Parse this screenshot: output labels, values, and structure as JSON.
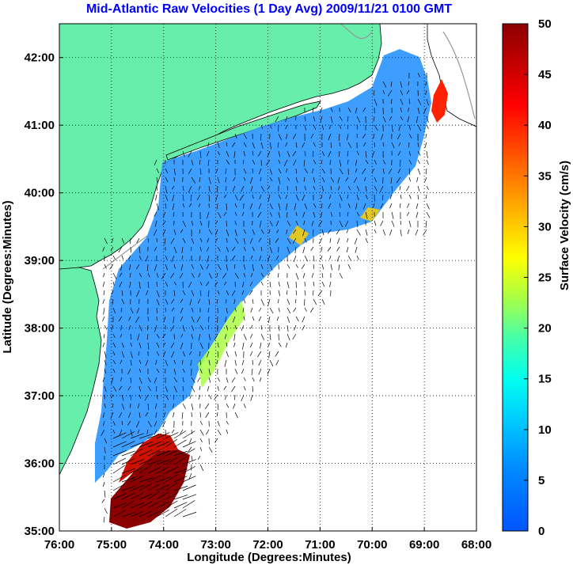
{
  "title": "Mid-Atlantic Raw Velocities (1 Day Avg) 2009/11/21 0100 GMT",
  "map": {
    "xlabel": "Longitude (Degrees:Minutes)",
    "ylabel": "Latitude (Degrees:Minutes)",
    "x_ticks": [
      "76:00",
      "75:00",
      "74:00",
      "73:00",
      "72:00",
      "71:00",
      "70:00",
      "69:00",
      "68:00"
    ],
    "y_ticks": [
      "35:00",
      "36:00",
      "37:00",
      "38:00",
      "39:00",
      "40:00",
      "41:00",
      "42:00"
    ],
    "lon_range": [
      -76,
      -68
    ],
    "lat_range": [
      35,
      42.5
    ],
    "land_color": "#66eeaa",
    "grid": "dotted"
  },
  "colorbar": {
    "label": "Surface Velocity (cm/s)",
    "ticks": [
      "0",
      "5",
      "10",
      "15",
      "20",
      "25",
      "30",
      "35",
      "40",
      "45",
      "50"
    ],
    "range": [
      0,
      50
    ],
    "colormap": "jet"
  }
}
